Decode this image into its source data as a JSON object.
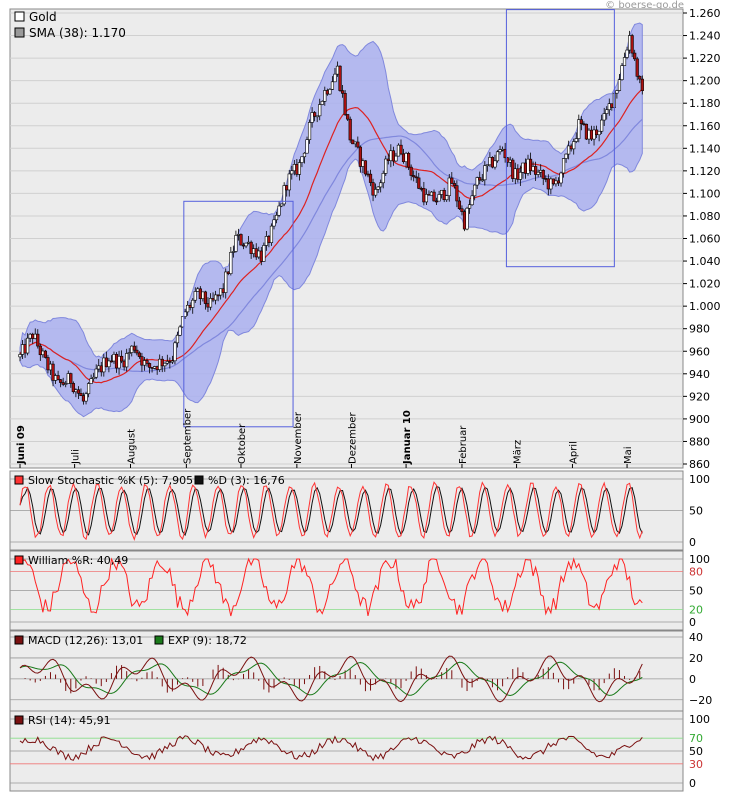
{
  "watermark": "© boerse-go.de",
  "colors": {
    "panel_bg": "#ececec",
    "grid": "#d0d0d0",
    "band_fill": "#aab0f0",
    "band_line": "#8088dd",
    "ma_fast": "#dd2222",
    "ma_slow": "#8088dd",
    "candle_up": "#ffffff",
    "candle_down": "#aa1111",
    "box": "#5560dd",
    "stoch_k": "#ff3333",
    "stoch_d": "#111111",
    "willr": "#ff2222",
    "willr_fill": "#ff6666",
    "macd": "#7a1010",
    "exp": "#1a7a1a",
    "rsi": "#7a1010",
    "rsi_fill": "#55cc33",
    "green_line": "#88dd88",
    "red_line": "#ee7777"
  },
  "chart_data": [
    {
      "type": "candlestick",
      "legend": [
        {
          "swatch": "#ffffff",
          "label": "Gold"
        },
        {
          "swatch": "#999999",
          "label": "SMA (38): 1.170"
        }
      ],
      "ylim": [
        860,
        1260
      ],
      "yticks": [
        {
          "v": 860,
          "label": "860"
        },
        {
          "v": 880,
          "label": "880"
        },
        {
          "v": 900,
          "label": "900"
        },
        {
          "v": 920,
          "label": "920"
        },
        {
          "v": 940,
          "label": "940"
        },
        {
          "v": 960,
          "label": "960"
        },
        {
          "v": 980,
          "label": "980"
        },
        {
          "v": 1000,
          "label": "1.000"
        },
        {
          "v": 1020,
          "label": "1.020"
        },
        {
          "v": 1040,
          "label": "1.040"
        },
        {
          "v": 1060,
          "label": "1.060"
        },
        {
          "v": 1080,
          "label": "1.080"
        },
        {
          "v": 1100,
          "label": "1.100"
        },
        {
          "v": 1120,
          "label": "1.120"
        },
        {
          "v": 1140,
          "label": "1.140"
        },
        {
          "v": 1160,
          "label": "1.160"
        },
        {
          "v": 1180,
          "label": "1.180"
        },
        {
          "v": 1200,
          "label": "1.200"
        },
        {
          "v": 1220,
          "label": "1.220"
        },
        {
          "v": 1240,
          "label": "1.240"
        },
        {
          "v": 1260,
          "label": "1.260"
        }
      ],
      "xlabels": [
        {
          "week": 0,
          "label": "Juni 09",
          "bold": true
        },
        {
          "week": 4.3,
          "label": "Juli",
          "bold": false
        },
        {
          "week": 8.7,
          "label": "August",
          "bold": false
        },
        {
          "week": 13.1,
          "label": "September",
          "bold": false
        },
        {
          "week": 17.4,
          "label": "Oktober",
          "bold": false
        },
        {
          "week": 21.8,
          "label": "November",
          "bold": false
        },
        {
          "week": 26.1,
          "label": "Dezember",
          "bold": false
        },
        {
          "week": 30.4,
          "label": "Januar 10",
          "bold": true
        },
        {
          "week": 34.8,
          "label": "Februar",
          "bold": false
        },
        {
          "week": 39.1,
          "label": "März",
          "bold": false
        },
        {
          "week": 43.5,
          "label": "April",
          "bold": false
        },
        {
          "week": 47.8,
          "label": "Mai",
          "bold": false
        }
      ],
      "close_path": [
        [
          0,
          955
        ],
        [
          1,
          975
        ],
        [
          2,
          950
        ],
        [
          3,
          930
        ],
        [
          4,
          935
        ],
        [
          5,
          915
        ],
        [
          6,
          940
        ],
        [
          7,
          955
        ],
        [
          8,
          950
        ],
        [
          9,
          965
        ],
        [
          10,
          945
        ],
        [
          11,
          950
        ],
        [
          12,
          955
        ],
        [
          13,
          995
        ],
        [
          14,
          1010
        ],
        [
          15,
          1000
        ],
        [
          16,
          1015
        ],
        [
          17,
          1060
        ],
        [
          18,
          1055
        ],
        [
          19,
          1045
        ],
        [
          20,
          1070
        ],
        [
          21,
          1110
        ],
        [
          22,
          1125
        ],
        [
          23,
          1165
        ],
        [
          24,
          1190
        ],
        [
          25,
          1210
        ],
        [
          26,
          1150
        ],
        [
          27,
          1125
        ],
        [
          28,
          1100
        ],
        [
          29,
          1130
        ],
        [
          30,
          1140
        ],
        [
          31,
          1115
        ],
        [
          32,
          1095
        ],
        [
          33,
          1095
        ],
        [
          34,
          1110
        ],
        [
          35,
          1075
        ],
        [
          36,
          1110
        ],
        [
          37,
          1125
        ],
        [
          38,
          1140
        ],
        [
          39,
          1115
        ],
        [
          40,
          1125
        ],
        [
          41,
          1115
        ],
        [
          42,
          1105
        ],
        [
          43,
          1130
        ],
        [
          44,
          1160
        ],
        [
          45,
          1150
        ],
        [
          46,
          1165
        ],
        [
          47,
          1195
        ],
        [
          48,
          1240
        ],
        [
          49,
          1185
        ]
      ],
      "boxes": [
        {
          "weeks": [
            12.9,
            21.5
          ],
          "range": [
            893,
            1093
          ]
        },
        {
          "weeks": [
            38.3,
            46.8
          ],
          "range": [
            1035,
            1263
          ]
        }
      ]
    },
    {
      "type": "line",
      "legend": [
        {
          "swatch": "#ff3333",
          "label": "Slow Stochastic %K (5): 7,905"
        },
        {
          "swatch": "#111111",
          "label": "%D (3): 16,76"
        }
      ],
      "ylim": [
        0,
        100
      ],
      "yticks": [
        {
          "v": 0,
          "label": "0"
        },
        {
          "v": 50,
          "label": "50"
        },
        {
          "v": 100,
          "label": "100"
        }
      ]
    },
    {
      "type": "line",
      "legend": [
        {
          "swatch": "#ff2222",
          "label": "William %R: 40,49"
        }
      ],
      "ylim": [
        0,
        100
      ],
      "yticks": [
        {
          "v": 0,
          "label": "0"
        },
        {
          "v": 20,
          "label": "20",
          "color": "#33aa33"
        },
        {
          "v": 50,
          "label": "50"
        },
        {
          "v": 80,
          "label": "80",
          "color": "#cc3333"
        },
        {
          "v": 100,
          "label": "100"
        }
      ]
    },
    {
      "type": "line",
      "legend": [
        {
          "swatch": "#7a1010",
          "label": "MACD (12,26): 13,01"
        },
        {
          "swatch": "#1a7a1a",
          "label": "EXP (9): 18,72"
        }
      ],
      "ylim": [
        -25,
        40
      ],
      "yticks": [
        {
          "v": -20,
          "label": "−20"
        },
        {
          "v": 0,
          "label": "0"
        },
        {
          "v": 20,
          "label": "20"
        },
        {
          "v": 40,
          "label": "40"
        }
      ]
    },
    {
      "type": "line",
      "legend": [
        {
          "swatch": "#7a1010",
          "label": "RSI (14): 45,91"
        }
      ],
      "ylim": [
        0,
        100
      ],
      "yticks": [
        {
          "v": 0,
          "label": "0"
        },
        {
          "v": 30,
          "label": "30",
          "color": "#cc3333"
        },
        {
          "v": 50,
          "label": "50"
        },
        {
          "v": 70,
          "label": "70",
          "color": "#33aa33"
        },
        {
          "v": 100,
          "label": "100"
        }
      ]
    }
  ]
}
